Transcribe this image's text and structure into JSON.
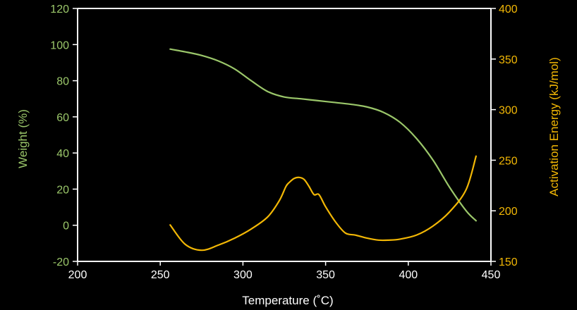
{
  "chart_data": {
    "type": "line",
    "title": "",
    "xlabel": "Temperature (˚C)",
    "ylabel": "Weight (%)",
    "y2label": "Activation Energy (kJ/mol)",
    "xlim": [
      200,
      450
    ],
    "ylim": [
      -20,
      120
    ],
    "y2lim": [
      150,
      400
    ],
    "xticks": [
      "200",
      "250",
      "300",
      "350",
      "400",
      "450"
    ],
    "yticks": [
      "-20",
      "0",
      "20",
      "40",
      "60",
      "80",
      "100",
      "120"
    ],
    "y2ticks": [
      "150",
      "200",
      "250",
      "300",
      "350",
      "400"
    ],
    "grid": false,
    "colors": {
      "background": "#000000",
      "axes": "#ffffff",
      "left_axis_text": "#9bc76a",
      "right_axis_text": "#f2b705"
    },
    "series": [
      {
        "axis": "left",
        "color": "#9bc76a",
        "x": [
          256,
          265,
          275,
          285,
          295,
          305,
          315,
          325,
          335,
          345,
          355,
          365,
          375,
          385,
          395,
          405,
          415,
          425,
          435,
          441
        ],
        "values": [
          97.5,
          96,
          94,
          91,
          86.5,
          80,
          74,
          71,
          70,
          69,
          68,
          67,
          65.5,
          62.5,
          57,
          48,
          36,
          21,
          8,
          2.5
        ]
      },
      {
        "axis": "right",
        "color": "#f2b705",
        "x": [
          256,
          265,
          275,
          285,
          295,
          305,
          315,
          322,
          326,
          328,
          331,
          334,
          337,
          340,
          343,
          346,
          350,
          356,
          362,
          368,
          375,
          382,
          388,
          395,
          405,
          415,
          425,
          435,
          441
        ],
        "values": [
          186,
          167,
          161,
          166,
          173,
          182,
          194,
          210,
          224,
          228,
          232,
          233,
          231,
          224,
          216,
          216,
          204,
          189,
          178,
          176,
          173,
          171,
          171,
          172,
          176,
          185,
          199,
          221,
          254
        ]
      }
    ]
  }
}
